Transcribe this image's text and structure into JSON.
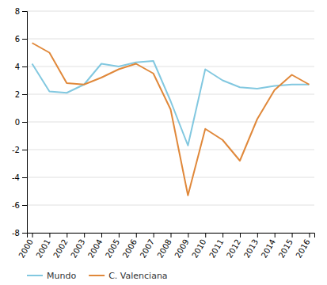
{
  "chart_data": {
    "type": "line",
    "x": [
      2000,
      2001,
      2002,
      2003,
      2004,
      2005,
      2006,
      2007,
      2008,
      2009,
      2010,
      2011,
      2012,
      2013,
      2014,
      2015,
      2016
    ],
    "series": [
      {
        "name": "Mundo",
        "color": "#82c8e0",
        "values": [
          4.2,
          2.2,
          2.1,
          2.7,
          4.2,
          4.0,
          4.3,
          4.4,
          1.5,
          -1.7,
          3.8,
          3.0,
          2.5,
          2.4,
          2.6,
          2.7,
          2.7
        ]
      },
      {
        "name": "C. Valenciana",
        "color": "#e0883a",
        "values": [
          5.7,
          5.0,
          2.8,
          2.7,
          3.2,
          3.8,
          4.2,
          3.5,
          0.9,
          -5.3,
          -0.5,
          -1.3,
          -2.8,
          0.2,
          2.3,
          3.4,
          2.7
        ]
      }
    ],
    "xlim": [
      1999.7,
      2016.3
    ],
    "xticks": [
      2000,
      2001,
      2002,
      2003,
      2004,
      2005,
      2006,
      2007,
      2008,
      2009,
      2010,
      2011,
      2012,
      2013,
      2014,
      2015,
      2016
    ],
    "ylim": [
      -8,
      8
    ],
    "yticks": [
      -8,
      -6,
      -4,
      -2,
      0,
      2,
      4,
      6,
      8
    ],
    "grid": true,
    "legend": "bottom"
  }
}
